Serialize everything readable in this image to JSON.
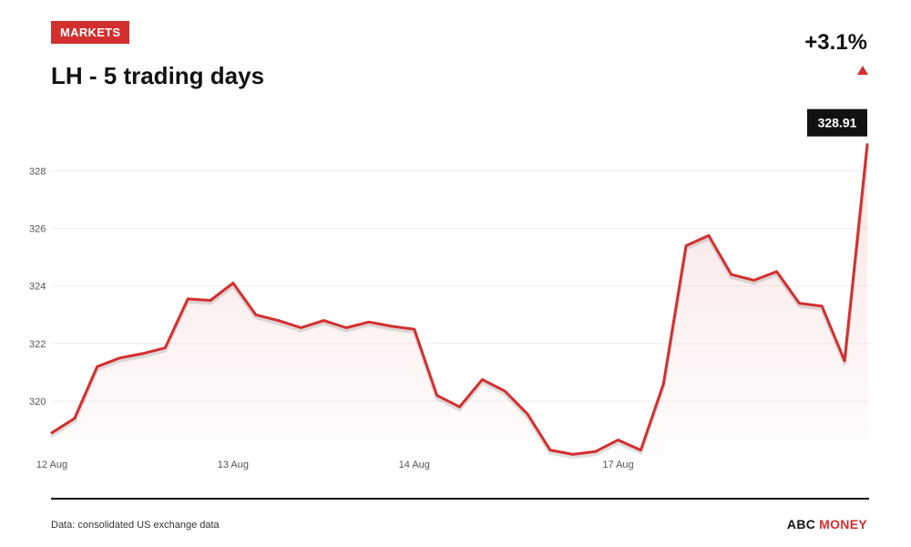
{
  "header": {
    "badge": "MARKETS",
    "title": "LH - 5 trading days",
    "change": "+3.1%"
  },
  "footer": {
    "source": "Data: consolidated US exchange data",
    "brand_part1": "ABC",
    "brand_part2": "MONEY"
  },
  "colors": {
    "accent": "#d32f2f",
    "text": "#111111",
    "grid": "#eeeeee",
    "axis_label": "#555555"
  },
  "chart_data": {
    "type": "line",
    "title": "LH - 5 trading days",
    "xlabel": "",
    "ylabel": "",
    "ylim": [
      318.1,
      329.5
    ],
    "yticks": [
      320,
      322,
      324,
      326,
      328
    ],
    "grid": true,
    "x_tick_labels": [
      {
        "label": "12 Aug",
        "index": 0
      },
      {
        "label": "13 Aug",
        "index": 8
      },
      {
        "label": "14 Aug",
        "index": 16
      },
      {
        "label": "17 Aug",
        "index": 25
      }
    ],
    "last_value_label": "328.91",
    "series": [
      {
        "values": [
          318.9,
          319.4,
          321.2,
          321.5,
          321.65,
          321.85,
          323.55,
          323.5,
          324.1,
          323.0,
          322.8,
          322.55,
          322.8,
          322.55,
          322.75,
          322.6,
          322.5,
          320.2,
          319.8,
          320.75,
          320.35,
          319.55,
          318.3,
          318.15,
          318.25,
          318.65,
          318.3,
          320.6,
          325.4,
          325.75,
          324.4,
          324.2,
          324.5,
          323.4,
          323.3,
          321.4,
          328.91
        ]
      }
    ]
  }
}
